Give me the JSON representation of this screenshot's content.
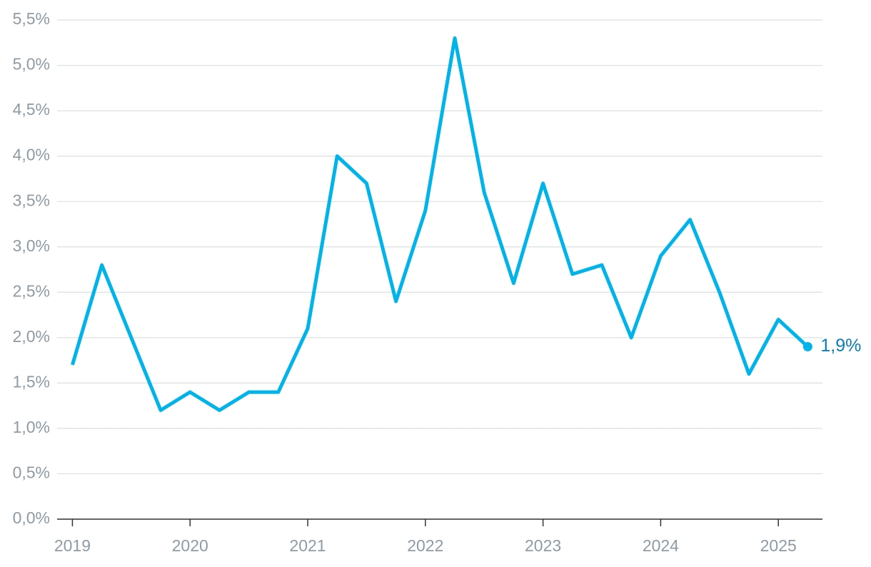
{
  "chart_data": {
    "type": "line",
    "x": [
      2019,
      2019.25,
      2019.5,
      2019.75,
      2020,
      2020.25,
      2020.5,
      2020.75,
      2021,
      2021.25,
      2021.5,
      2021.75,
      2022,
      2022.25,
      2022.5,
      2022.75,
      2023,
      2023.25,
      2023.5,
      2023.75,
      2024,
      2024.25,
      2024.5,
      2024.75,
      2025,
      2025.25
    ],
    "series": [
      {
        "color": "#00b4ea",
        "values": [
          1.7,
          2.8,
          2.0,
          1.2,
          1.4,
          1.2,
          1.4,
          1.4,
          2.1,
          4.0,
          3.7,
          2.4,
          3.4,
          5.3,
          3.6,
          2.6,
          3.7,
          2.7,
          2.8,
          2.0,
          2.9,
          3.3,
          2.5,
          1.6,
          2.2,
          1.9
        ],
        "value_labels": [
          null,
          null,
          null,
          null,
          null,
          null,
          null,
          null,
          null,
          null,
          null,
          null,
          null,
          null,
          null,
          null,
          null,
          null,
          null,
          null,
          null,
          null,
          null,
          null,
          null,
          "1,9%"
        ]
      }
    ],
    "label_color": "#0a7db5",
    "xlim": [
      2018.87,
      2025.375
    ],
    "xticks": [
      2019,
      2020,
      2021,
      2022,
      2023,
      2024,
      2025
    ],
    "ylim": [
      0,
      5.5
    ],
    "yticks": [
      {
        "value": 0,
        "label": "0,0%"
      },
      {
        "value": 0.5,
        "label": "0,5%"
      },
      {
        "value": 1,
        "label": "1,0%"
      },
      {
        "value": 1.5,
        "label": "1,5%"
      },
      {
        "value": 2,
        "label": "2,0%"
      },
      {
        "value": 2.5,
        "label": "2,5%"
      },
      {
        "value": 3,
        "label": "3,0%"
      },
      {
        "value": 3.5,
        "label": "3,5%"
      },
      {
        "value": 4,
        "label": "4,0%"
      },
      {
        "value": 4.5,
        "label": "4,5%"
      },
      {
        "value": 5,
        "label": "5,0%"
      },
      {
        "value": 5.5,
        "label": "5,5%"
      }
    ],
    "grid": true
  }
}
